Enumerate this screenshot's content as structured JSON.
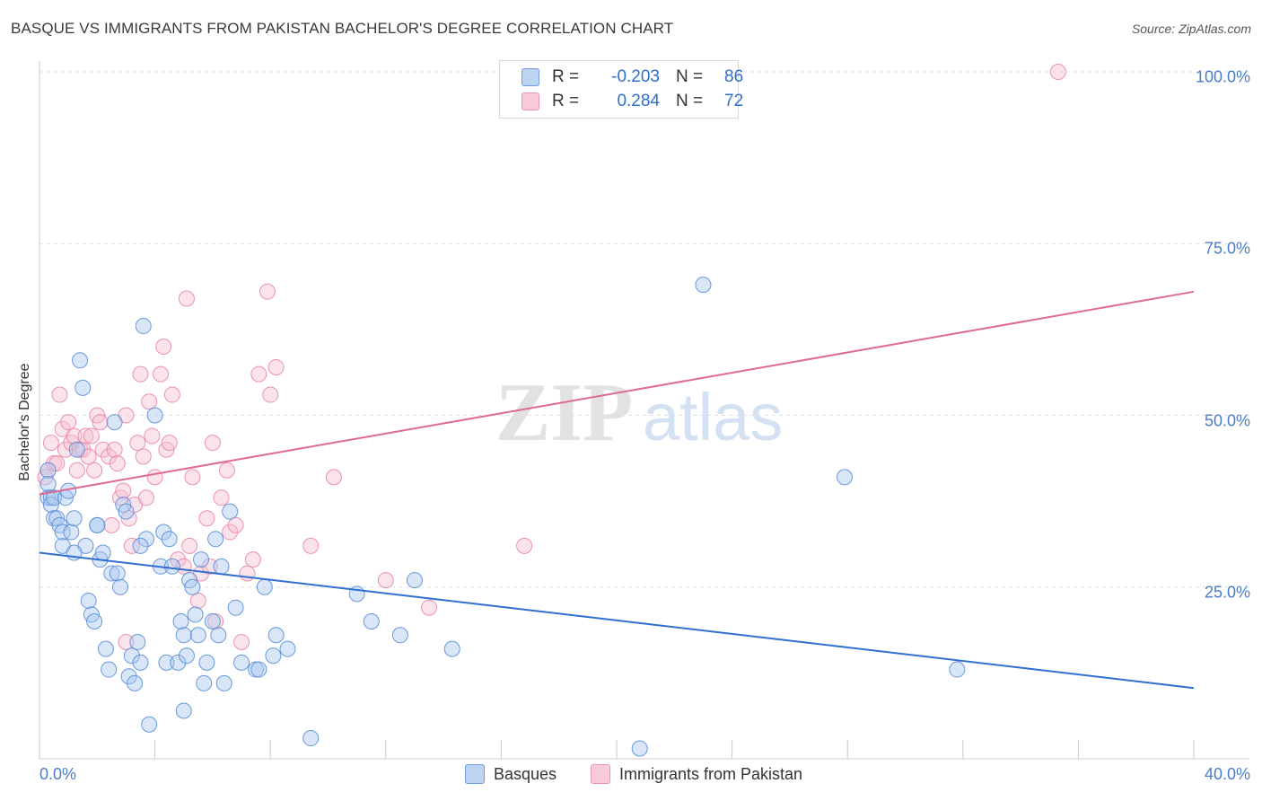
{
  "header": {
    "title": "BASQUE VS IMMIGRANTS FROM PAKISTAN BACHELOR'S DEGREE CORRELATION CHART",
    "source": "Source: ZipAtlas.com"
  },
  "watermark": {
    "zip": "ZIP",
    "atlas": "atlas"
  },
  "stats": {
    "row1": {
      "r_label": "R =",
      "r_value": "-0.203",
      "n_label": "N =",
      "n_value": "86"
    },
    "row2": {
      "r_label": "R =",
      "r_value": "0.284",
      "n_label": "N =",
      "n_value": "72"
    }
  },
  "legend": {
    "series1": "Basques",
    "series2": "Immigrants from Pakistan"
  },
  "colors": {
    "basque_fill": "#a9c8f0",
    "basque_stroke": "#5b8fd8",
    "basque_line": "#2f6fd1",
    "pak_fill": "#f6c0d2",
    "pak_stroke": "#e887a8",
    "pak_line": "#e06a95",
    "tick_text": "#4a7cc9",
    "grid": "#e0e0e0"
  },
  "chart_data": {
    "type": "scatter",
    "ylabel": "Bachelor's Degree",
    "xlim": [
      0,
      40
    ],
    "ylim": [
      0,
      100
    ],
    "x_tick_labels": [
      "0.0%",
      "40.0%"
    ],
    "y_ticks": [
      25,
      50,
      75,
      100
    ],
    "y_tick_labels": [
      "25.0%",
      "50.0%",
      "75.0%",
      "100.0%"
    ],
    "grid": true,
    "legend_position": "bottom",
    "series": [
      {
        "name": "Basques",
        "trend": {
          "x": [
            0,
            40
          ],
          "y": [
            30.0,
            10.3
          ]
        },
        "points": [
          [
            0.3,
            42
          ],
          [
            0.3,
            40
          ],
          [
            0.3,
            38
          ],
          [
            0.4,
            38
          ],
          [
            0.4,
            37
          ],
          [
            0.5,
            38
          ],
          [
            0.5,
            35
          ],
          [
            0.6,
            35
          ],
          [
            0.7,
            34
          ],
          [
            0.8,
            31
          ],
          [
            0.8,
            33
          ],
          [
            0.9,
            38
          ],
          [
            1.0,
            39
          ],
          [
            1.1,
            33
          ],
          [
            1.2,
            35
          ],
          [
            1.3,
            45
          ],
          [
            1.4,
            58
          ],
          [
            1.5,
            54
          ],
          [
            1.6,
            31
          ],
          [
            1.7,
            23
          ],
          [
            1.8,
            21
          ],
          [
            1.9,
            20
          ],
          [
            2.0,
            34
          ],
          [
            2.1,
            29
          ],
          [
            2.2,
            30
          ],
          [
            2.3,
            16
          ],
          [
            2.4,
            13
          ],
          [
            2.5,
            27
          ],
          [
            2.6,
            49
          ],
          [
            2.7,
            27
          ],
          [
            2.8,
            25
          ],
          [
            2.9,
            37
          ],
          [
            3.0,
            36
          ],
          [
            3.1,
            12
          ],
          [
            3.2,
            15
          ],
          [
            3.3,
            11
          ],
          [
            3.4,
            17
          ],
          [
            3.5,
            14
          ],
          [
            3.6,
            63
          ],
          [
            3.7,
            32
          ],
          [
            3.8,
            5
          ],
          [
            4.0,
            50
          ],
          [
            4.2,
            28
          ],
          [
            4.3,
            33
          ],
          [
            4.4,
            14
          ],
          [
            4.5,
            32
          ],
          [
            4.6,
            28
          ],
          [
            4.8,
            14
          ],
          [
            4.9,
            20
          ],
          [
            5.0,
            7
          ],
          [
            5.1,
            15
          ],
          [
            5.2,
            26
          ],
          [
            5.3,
            25
          ],
          [
            5.4,
            21
          ],
          [
            5.5,
            18
          ],
          [
            5.6,
            29
          ],
          [
            5.7,
            11
          ],
          [
            5.8,
            14
          ],
          [
            6.0,
            20
          ],
          [
            6.1,
            32
          ],
          [
            6.2,
            18
          ],
          [
            6.3,
            28
          ],
          [
            6.4,
            11
          ],
          [
            6.6,
            36
          ],
          [
            6.8,
            22
          ],
          [
            7.0,
            14
          ],
          [
            7.5,
            13
          ],
          [
            7.6,
            13
          ],
          [
            7.8,
            25
          ],
          [
            8.1,
            15
          ],
          [
            8.2,
            18
          ],
          [
            8.6,
            16
          ],
          [
            9.4,
            3
          ],
          [
            11.0,
            24
          ],
          [
            11.5,
            20
          ],
          [
            12.5,
            18
          ],
          [
            13.0,
            26
          ],
          [
            14.3,
            16
          ],
          [
            20.8,
            1.5
          ],
          [
            23.0,
            69
          ],
          [
            27.9,
            41
          ],
          [
            31.8,
            13
          ],
          [
            2.0,
            34
          ],
          [
            3.5,
            31
          ],
          [
            5.0,
            18
          ],
          [
            1.2,
            30
          ]
        ]
      },
      {
        "name": "Immigrants from Pakistan",
        "trend": {
          "x": [
            0,
            40
          ],
          "y": [
            38.5,
            68.0
          ]
        },
        "points": [
          [
            0.2,
            41
          ],
          [
            0.3,
            42
          ],
          [
            0.4,
            46
          ],
          [
            0.5,
            43
          ],
          [
            0.6,
            43
          ],
          [
            0.7,
            53
          ],
          [
            0.8,
            48
          ],
          [
            0.9,
            45
          ],
          [
            1.0,
            49
          ],
          [
            1.1,
            46
          ],
          [
            1.2,
            47
          ],
          [
            1.3,
            42
          ],
          [
            1.4,
            45
          ],
          [
            1.5,
            45
          ],
          [
            1.6,
            47
          ],
          [
            1.7,
            44
          ],
          [
            1.8,
            47
          ],
          [
            1.9,
            42
          ],
          [
            2.0,
            50
          ],
          [
            2.1,
            49
          ],
          [
            2.2,
            45
          ],
          [
            2.4,
            44
          ],
          [
            2.5,
            34
          ],
          [
            2.6,
            45
          ],
          [
            2.7,
            43
          ],
          [
            2.8,
            38
          ],
          [
            2.9,
            39
          ],
          [
            3.0,
            50
          ],
          [
            3.1,
            35
          ],
          [
            3.2,
            31
          ],
          [
            3.3,
            37
          ],
          [
            3.4,
            46
          ],
          [
            3.5,
            56
          ],
          [
            3.6,
            44
          ],
          [
            3.7,
            38
          ],
          [
            3.8,
            52
          ],
          [
            3.9,
            47
          ],
          [
            4.0,
            41
          ],
          [
            4.2,
            56
          ],
          [
            4.3,
            60
          ],
          [
            4.4,
            45
          ],
          [
            4.5,
            46
          ],
          [
            4.6,
            53
          ],
          [
            4.8,
            29
          ],
          [
            5.0,
            28
          ],
          [
            5.2,
            31
          ],
          [
            5.3,
            41
          ],
          [
            5.5,
            23
          ],
          [
            5.6,
            27
          ],
          [
            5.8,
            35
          ],
          [
            5.9,
            28
          ],
          [
            6.0,
            46
          ],
          [
            6.1,
            20
          ],
          [
            6.3,
            38
          ],
          [
            6.5,
            42
          ],
          [
            6.6,
            33
          ],
          [
            6.8,
            34
          ],
          [
            7.0,
            17
          ],
          [
            7.2,
            27
          ],
          [
            7.4,
            29
          ],
          [
            7.6,
            56
          ],
          [
            7.9,
            68
          ],
          [
            8.0,
            53
          ],
          [
            8.2,
            57
          ],
          [
            9.4,
            31
          ],
          [
            10.2,
            41
          ],
          [
            12.0,
            26
          ],
          [
            13.5,
            22
          ],
          [
            16.8,
            31
          ],
          [
            35.3,
            100
          ],
          [
            5.1,
            67
          ],
          [
            3.0,
            17
          ]
        ]
      }
    ]
  }
}
